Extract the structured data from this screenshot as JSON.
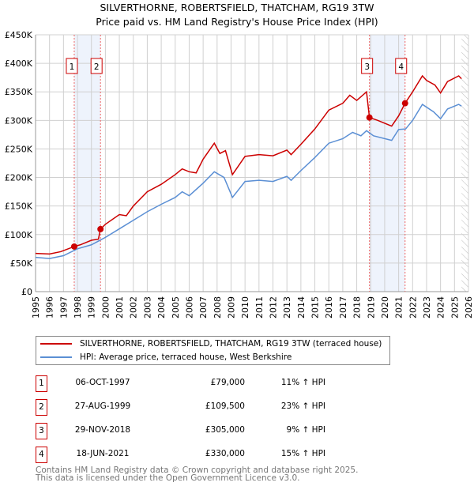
{
  "title": "SILVERTHORNE, ROBERTSFIELD, THATCHAM, RG19 3TW",
  "subtitle": "Price paid vs. HM Land Registry's House Price Index (HPI)",
  "legend": {
    "property": "SILVERTHORNE, ROBERTSFIELD, THATCHAM, RG19 3TW (terraced house)",
    "hpi": "HPI: Average price, terraced house, West Berkshire"
  },
  "colors": {
    "property": "#cc0000",
    "hpi": "#5b8fd4",
    "shade": "#eef3fc"
  },
  "sales": [
    {
      "n": "1",
      "date": "06-OCT-1997",
      "price": "£79,000",
      "hpi": "11% ↑ HPI",
      "x": 1997.77,
      "y": 79
    },
    {
      "n": "2",
      "date": "27-AUG-1999",
      "price": "£109,500",
      "hpi": "23% ↑ HPI",
      "x": 1999.65,
      "y": 109.5
    },
    {
      "n": "3",
      "date": "29-NOV-2018",
      "price": "£305,000",
      "hpi": "9% ↑ HPI",
      "x": 2018.91,
      "y": 305
    },
    {
      "n": "4",
      "date": "18-JUN-2021",
      "price": "£330,000",
      "hpi": "15% ↑ HPI",
      "x": 2021.46,
      "y": 330
    }
  ],
  "footer": [
    "Contains HM Land Registry data © Crown copyright and database right 2025.",
    "This data is licensed under the Open Government Licence v3.0."
  ],
  "chart_data": {
    "type": "line",
    "xlim": [
      1995,
      2026
    ],
    "ylim": [
      0,
      450
    ],
    "yticks": [
      "£0",
      "£50K",
      "£100K",
      "£150K",
      "£200K",
      "£250K",
      "£300K",
      "£350K",
      "£400K",
      "£450K"
    ],
    "xticks": [
      "1995",
      "1996",
      "1997",
      "1998",
      "1999",
      "2000",
      "2001",
      "2002",
      "2003",
      "2004",
      "2005",
      "2006",
      "2007",
      "2008",
      "2009",
      "2010",
      "2011",
      "2012",
      "2013",
      "2014",
      "2015",
      "2016",
      "2017",
      "2018",
      "2019",
      "2020",
      "2021",
      "2022",
      "2023",
      "2024",
      "2025",
      "2026"
    ],
    "series": [
      {
        "name": "property",
        "x": [
          1995,
          1996,
          1996.8,
          1997.77,
          1998.2,
          1999,
          1999.5,
          1999.65,
          2000,
          2001,
          2001.5,
          2002,
          2003,
          2004,
          2005,
          2005.5,
          2006,
          2006.5,
          2007,
          2007.8,
          2008.2,
          2008.6,
          2009.1,
          2010,
          2011,
          2012,
          2013,
          2013.3,
          2014,
          2015,
          2016,
          2017,
          2017.5,
          2018,
          2018.7,
          2018.91,
          2019.5,
          2020.5,
          2021,
          2021.46,
          2022,
          2022.7,
          2023,
          2023.6,
          2024,
          2024.5,
          2025.3,
          2025.5
        ],
        "y": [
          67,
          66,
          70,
          79,
          82,
          90,
          92,
          109.5,
          118,
          135,
          133,
          150,
          175,
          188,
          205,
          215,
          210,
          208,
          232,
          260,
          242,
          247,
          205,
          237,
          240,
          238,
          248,
          240,
          258,
          285,
          318,
          330,
          344,
          335,
          350,
          305,
          300,
          290,
          308,
          330,
          350,
          378,
          370,
          362,
          348,
          368,
          378,
          373
        ]
      },
      {
        "name": "hpi",
        "x": [
          1995,
          1996,
          1997,
          1998,
          1999,
          2000,
          2001,
          2002,
          2003,
          2004,
          2005,
          2005.5,
          2006,
          2007,
          2007.8,
          2008.5,
          2009.1,
          2010,
          2011,
          2012,
          2013,
          2013.3,
          2014,
          2015,
          2016,
          2017,
          2017.7,
          2018.3,
          2018.7,
          2019.2,
          2020.5,
          2021,
          2021.5,
          2022,
          2022.7,
          2023.5,
          2024,
          2024.5,
          2025.3,
          2025.5
        ],
        "y": [
          60,
          58,
          63,
          75,
          82,
          95,
          110,
          125,
          140,
          153,
          165,
          175,
          168,
          190,
          210,
          200,
          165,
          193,
          195,
          193,
          202,
          195,
          212,
          235,
          260,
          268,
          279,
          273,
          282,
          273,
          265,
          284,
          285,
          300,
          328,
          315,
          303,
          320,
          328,
          325
        ]
      }
    ]
  }
}
